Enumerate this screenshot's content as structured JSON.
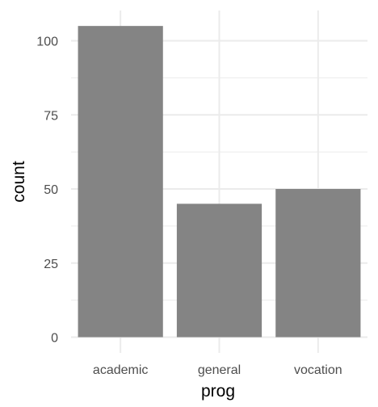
{
  "chart_data": {
    "type": "bar",
    "title": "",
    "xlabel": "prog",
    "ylabel": "count",
    "categories": [
      "academic",
      "general",
      "vocation"
    ],
    "values": [
      105,
      45,
      50
    ],
    "ylim": [
      0,
      110
    ],
    "yticks": [
      0,
      25,
      50,
      75,
      100
    ],
    "ytick_labels": [
      "0",
      "25",
      "50",
      "75",
      "100"
    ],
    "grid": true,
    "legend": "none",
    "colors": {
      "bar": "#7f7f7f",
      "grid": "#ebebeb",
      "background": "#ffffff"
    }
  }
}
